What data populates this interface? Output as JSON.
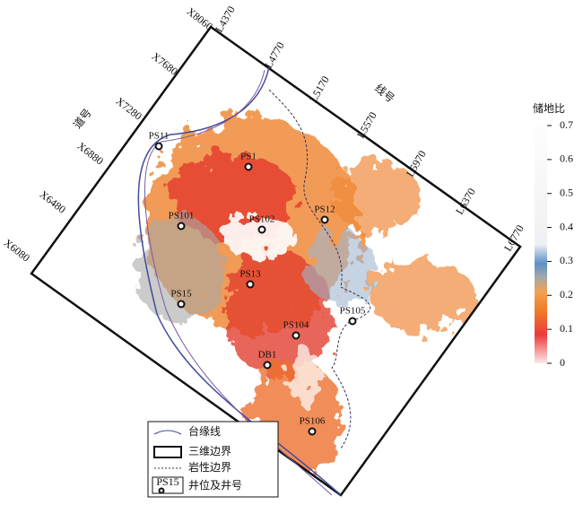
{
  "colorbar": {
    "title": "储地比",
    "lim": [
      0,
      0.7
    ],
    "ticks": [
      0,
      0.1,
      0.2,
      0.3,
      0.4,
      0.5,
      0.6,
      0.7
    ]
  },
  "map": {
    "line_axis_label": "线号",
    "trace_axis_label": "道号",
    "trace_labels": [
      "X8060",
      "X7680",
      "X7280",
      "X6880",
      "X6480",
      "X6080"
    ],
    "line_labels": [
      "L4370",
      "L4770",
      "L5170",
      "L5570",
      "L5970",
      "L6370",
      "L6770"
    ],
    "wells": [
      "PS11",
      "PS1",
      "PS101",
      "PS102",
      "PS12",
      "PS13",
      "PS15",
      "PS105",
      "PS104",
      "DB1",
      "PS106"
    ]
  },
  "legend": {
    "items": [
      "台缘线",
      "三维边界",
      "岩性边界",
      "井位及井号"
    ],
    "well_sample": "PS15"
  }
}
